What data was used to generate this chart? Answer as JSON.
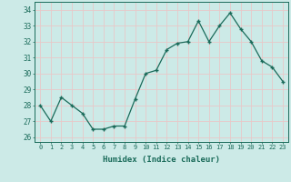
{
  "x": [
    0,
    1,
    2,
    3,
    4,
    5,
    6,
    7,
    8,
    9,
    10,
    11,
    12,
    13,
    14,
    15,
    16,
    17,
    18,
    19,
    20,
    21,
    22,
    23
  ],
  "y": [
    28.0,
    27.0,
    28.5,
    28.0,
    27.5,
    26.5,
    26.5,
    26.7,
    26.7,
    28.4,
    30.0,
    30.2,
    31.5,
    31.9,
    32.0,
    33.3,
    32.0,
    33.0,
    33.8,
    32.8,
    32.0,
    30.8,
    30.4,
    29.5
  ],
  "line_color": "#1a6b5a",
  "marker": "+",
  "marker_size": 3.5,
  "bg_color": "#cceae7",
  "grid_color": "#e8c8c8",
  "xlabel": "Humidex (Indice chaleur)",
  "ylabel_ticks": [
    26,
    27,
    28,
    29,
    30,
    31,
    32,
    33,
    34
  ],
  "xlim": [
    -0.5,
    23.5
  ],
  "ylim": [
    25.7,
    34.5
  ],
  "tick_color": "#1a6b5a",
  "label_color": "#1a6b5a",
  "font_family": "monospace"
}
